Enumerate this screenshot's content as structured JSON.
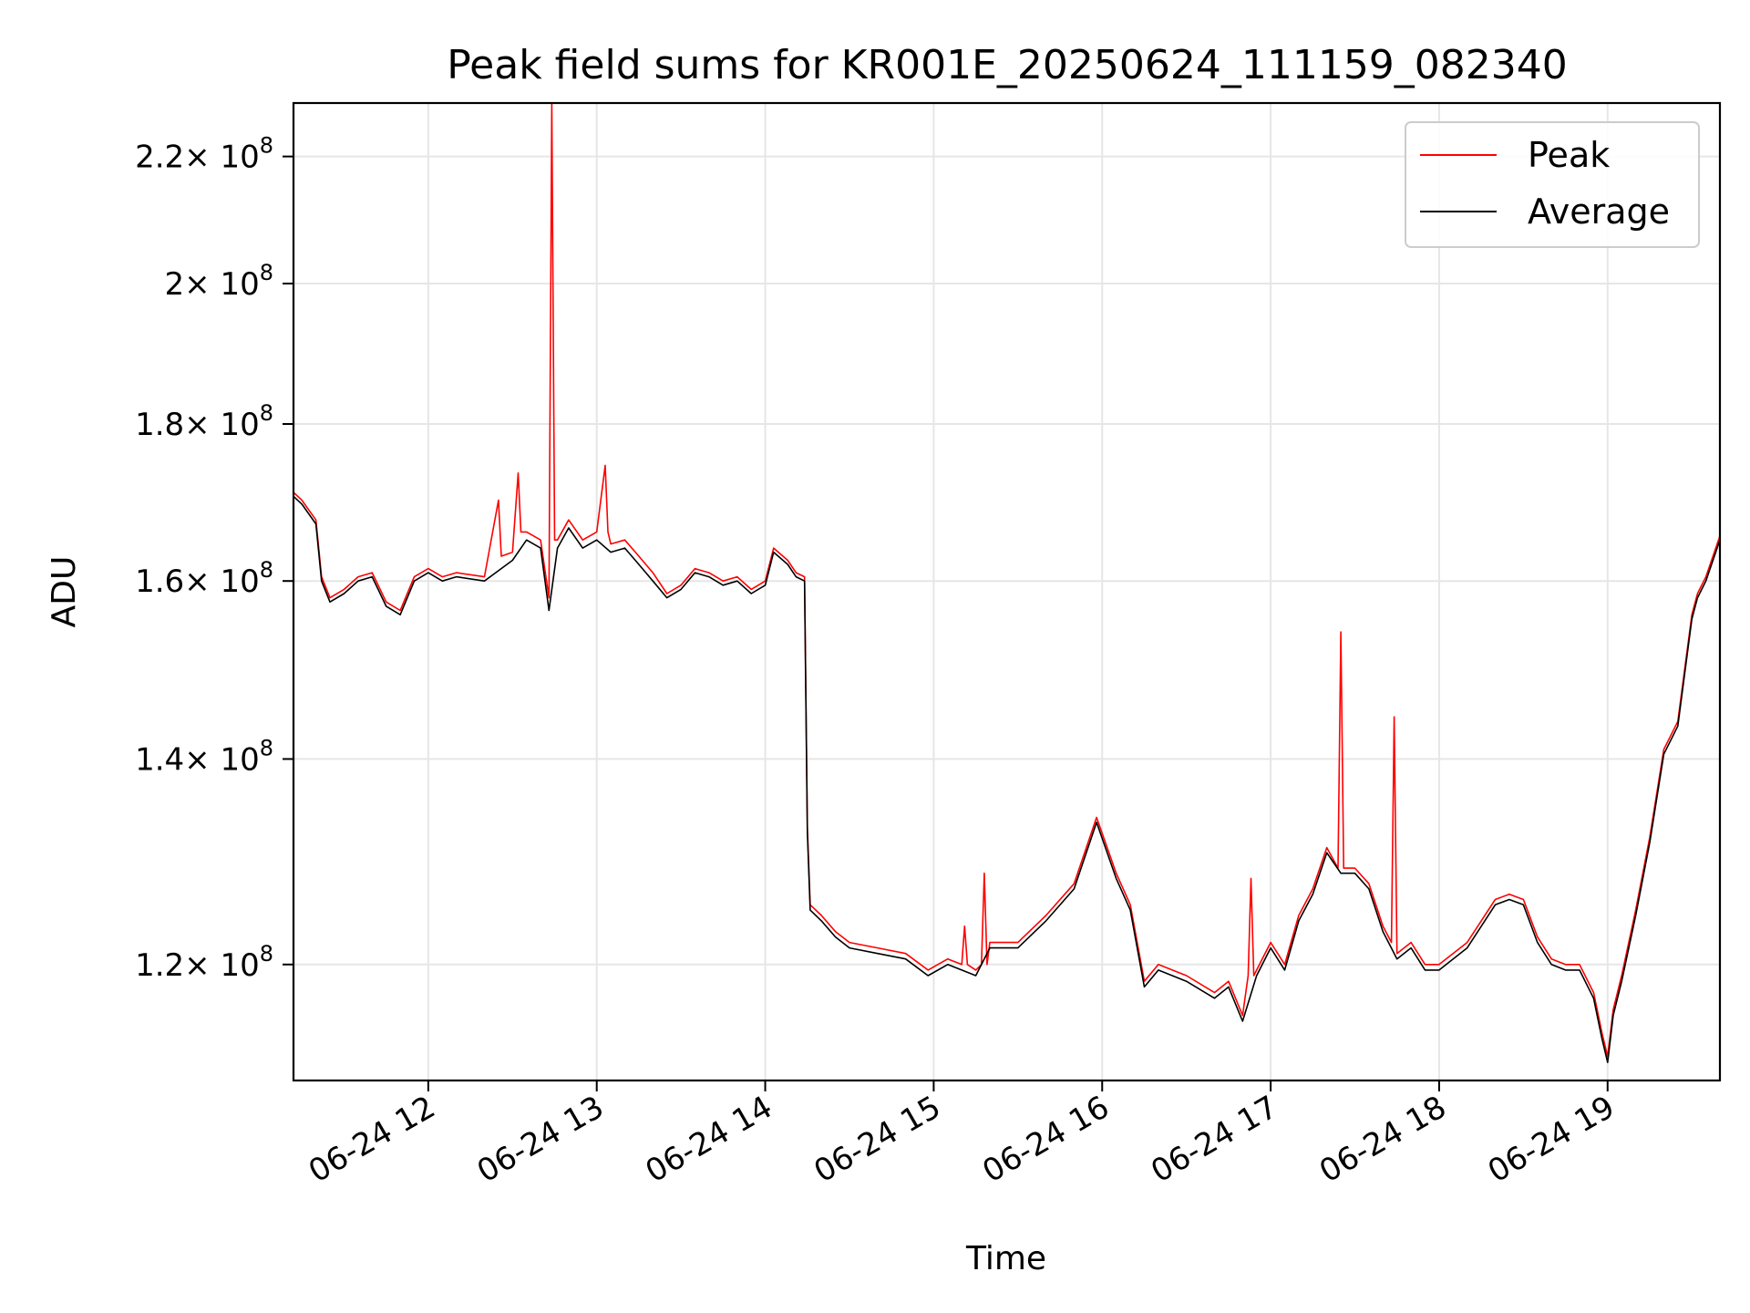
{
  "chart_data": {
    "type": "line",
    "title": "Peak field sums for KR001E_20250624_111159_082340",
    "xlabel": "Time",
    "ylabel": "ADU",
    "y_scale": "log",
    "grid": true,
    "legend_position": "top-right",
    "xlim": [
      "06-24 11:12",
      "06-24 19:40"
    ],
    "ylim": [
      110000000,
      229000000
    ],
    "x_ticks": [
      {
        "value": "06-24 12:00",
        "label": "06-24 12"
      },
      {
        "value": "06-24 13:00",
        "label": "06-24 13"
      },
      {
        "value": "06-24 14:00",
        "label": "06-24 14"
      },
      {
        "value": "06-24 15:00",
        "label": "06-24 15"
      },
      {
        "value": "06-24 16:00",
        "label": "06-24 16"
      },
      {
        "value": "06-24 17:00",
        "label": "06-24 17"
      },
      {
        "value": "06-24 18:00",
        "label": "06-24 18"
      },
      {
        "value": "06-24 19:00",
        "label": "06-24 19"
      }
    ],
    "y_ticks": [
      {
        "value": 120000000,
        "mantissa": "1.2",
        "exponent": "8"
      },
      {
        "value": 140000000,
        "mantissa": "1.4",
        "exponent": "8"
      },
      {
        "value": 160000000,
        "mantissa": "1.6",
        "exponent": "8"
      },
      {
        "value": 180000000,
        "mantissa": "1.8",
        "exponent": "8"
      },
      {
        "value": 200000000,
        "mantissa": "2",
        "exponent": "8"
      },
      {
        "value": 220000000,
        "mantissa": "2.2",
        "exponent": "8"
      }
    ],
    "times_label": "× 10",
    "series": [
      {
        "name": "Average",
        "color": "#000000",
        "x": [
          "06-24 11:12",
          "06-24 11:15",
          "06-24 11:20",
          "06-24 11:22",
          "06-24 11:25",
          "06-24 11:30",
          "06-24 11:35",
          "06-24 11:40",
          "06-24 11:45",
          "06-24 11:50",
          "06-24 11:55",
          "06-24 12:00",
          "06-24 12:05",
          "06-24 12:10",
          "06-24 12:20",
          "06-24 12:30",
          "06-24 12:35",
          "06-24 12:40",
          "06-24 12:43",
          "06-24 12:46",
          "06-24 12:50",
          "06-24 12:55",
          "06-24 13:00",
          "06-24 13:05",
          "06-24 13:10",
          "06-24 13:15",
          "06-24 13:20",
          "06-24 13:25",
          "06-24 13:30",
          "06-24 13:35",
          "06-24 13:40",
          "06-24 13:45",
          "06-24 13:50",
          "06-24 13:55",
          "06-24 14:00",
          "06-24 14:03",
          "06-24 14:08",
          "06-24 14:11",
          "06-24 14:14",
          "06-24 14:15",
          "06-24 14:16",
          "06-24 14:20",
          "06-24 14:25",
          "06-24 14:30",
          "06-24 14:40",
          "06-24 14:50",
          "06-24 14:58",
          "06-24 15:05",
          "06-24 15:15",
          "06-24 15:20",
          "06-24 15:30",
          "06-24 15:40",
          "06-24 15:50",
          "06-24 15:58",
          "06-24 16:05",
          "06-24 16:10",
          "06-24 16:15",
          "06-24 16:20",
          "06-24 16:30",
          "06-24 16:40",
          "06-24 16:45",
          "06-24 16:50",
          "06-24 16:55",
          "06-24 17:00",
          "06-24 17:05",
          "06-24 17:10",
          "06-24 17:15",
          "06-24 17:20",
          "06-24 17:25",
          "06-24 17:30",
          "06-24 17:35",
          "06-24 17:40",
          "06-24 17:45",
          "06-24 17:50",
          "06-24 17:55",
          "06-24 18:00",
          "06-24 18:10",
          "06-24 18:20",
          "06-24 18:25",
          "06-24 18:30",
          "06-24 18:35",
          "06-24 18:40",
          "06-24 18:45",
          "06-24 18:50",
          "06-24 18:55",
          "06-24 18:58",
          "06-24 19:00",
          "06-24 19:02",
          "06-24 19:05",
          "06-24 19:10",
          "06-24 19:15",
          "06-24 19:20",
          "06-24 19:25",
          "06-24 19:30",
          "06-24 19:32",
          "06-24 19:35",
          "06-24 19:40"
        ],
        "values": [
          170500000,
          169500000,
          167000000,
          160000000,
          157500000,
          158500000,
          160000000,
          160500000,
          157000000,
          156000000,
          160000000,
          161000000,
          160000000,
          160500000,
          160000000,
          162500000,
          165000000,
          164000000,
          156500000,
          164000000,
          166500000,
          164000000,
          165000000,
          163500000,
          164000000,
          162000000,
          160000000,
          158000000,
          159000000,
          161000000,
          160500000,
          159500000,
          160000000,
          158500000,
          159500000,
          163500000,
          162000000,
          160500000,
          160000000,
          132500000,
          125000000,
          124000000,
          122500000,
          121500000,
          121000000,
          120500000,
          119000000,
          120000000,
          119000000,
          121500000,
          121500000,
          124000000,
          127000000,
          133500000,
          128000000,
          125000000,
          118000000,
          119500000,
          118500000,
          117000000,
          118000000,
          115000000,
          119000000,
          121500000,
          119500000,
          124000000,
          126500000,
          130500000,
          128500000,
          128500000,
          127000000,
          123000000,
          120500000,
          121500000,
          119500000,
          119500000,
          121500000,
          125500000,
          126000000,
          125500000,
          122000000,
          120000000,
          119500000,
          119500000,
          117000000,
          113500000,
          111500000,
          115500000,
          118500000,
          124500000,
          131500000,
          140500000,
          143500000,
          155500000,
          158000000,
          160000000,
          165000000
        ]
      },
      {
        "name": "Peak",
        "color": "#ff0000",
        "x": [
          "06-24 11:12",
          "06-24 11:15",
          "06-24 11:20",
          "06-24 11:22",
          "06-24 11:25",
          "06-24 11:30",
          "06-24 11:35",
          "06-24 11:40",
          "06-24 11:45",
          "06-24 11:50",
          "06-24 11:55",
          "06-24 12:00",
          "06-24 12:05",
          "06-24 12:10",
          "06-24 12:20",
          "06-24 12:25",
          "06-24 12:26",
          "06-24 12:30",
          "06-24 12:32",
          "06-24 12:33",
          "06-24 12:35",
          "06-24 12:40",
          "06-24 12:43",
          "06-24 12:44",
          "06-24 12:45",
          "06-24 12:46",
          "06-24 12:50",
          "06-24 12:55",
          "06-24 13:00",
          "06-24 13:03",
          "06-24 13:04",
          "06-24 13:05",
          "06-24 13:10",
          "06-24 13:15",
          "06-24 13:20",
          "06-24 13:25",
          "06-24 13:30",
          "06-24 13:35",
          "06-24 13:40",
          "06-24 13:45",
          "06-24 13:50",
          "06-24 13:55",
          "06-24 14:00",
          "06-24 14:03",
          "06-24 14:08",
          "06-24 14:11",
          "06-24 14:14",
          "06-24 14:15",
          "06-24 14:16",
          "06-24 14:20",
          "06-24 14:25",
          "06-24 14:30",
          "06-24 14:40",
          "06-24 14:50",
          "06-24 14:58",
          "06-24 15:05",
          "06-24 15:10",
          "06-24 15:11",
          "06-24 15:12",
          "06-24 15:15",
          "06-24 15:17",
          "06-24 15:18",
          "06-24 15:19",
          "06-24 15:20",
          "06-24 15:30",
          "06-24 15:40",
          "06-24 15:50",
          "06-24 15:58",
          "06-24 16:05",
          "06-24 16:10",
          "06-24 16:15",
          "06-24 16:20",
          "06-24 16:30",
          "06-24 16:40",
          "06-24 16:45",
          "06-24 16:50",
          "06-24 16:52",
          "06-24 16:53",
          "06-24 16:54",
          "06-24 16:55",
          "06-24 17:00",
          "06-24 17:05",
          "06-24 17:10",
          "06-24 17:15",
          "06-24 17:20",
          "06-24 17:24",
          "06-24 17:25",
          "06-24 17:26",
          "06-24 17:30",
          "06-24 17:35",
          "06-24 17:40",
          "06-24 17:43",
          "06-24 17:44",
          "06-24 17:45",
          "06-24 17:50",
          "06-24 17:55",
          "06-24 18:00",
          "06-24 18:10",
          "06-24 18:20",
          "06-24 18:25",
          "06-24 18:30",
          "06-24 18:35",
          "06-24 18:40",
          "06-24 18:45",
          "06-24 18:50",
          "06-24 18:55",
          "06-24 18:58",
          "06-24 19:00",
          "06-24 19:02",
          "06-24 19:05",
          "06-24 19:10",
          "06-24 19:15",
          "06-24 19:20",
          "06-24 19:25",
          "06-24 19:30",
          "06-24 19:32",
          "06-24 19:35",
          "06-24 19:40"
        ],
        "values": [
          171000000,
          170000000,
          167500000,
          160500000,
          158000000,
          159000000,
          160500000,
          161000000,
          157500000,
          156500000,
          160500000,
          161500000,
          160500000,
          161000000,
          160500000,
          170000000,
          163000000,
          163500000,
          173500000,
          166000000,
          166000000,
          165000000,
          158000000,
          229000000,
          165000000,
          165000000,
          167500000,
          165000000,
          166000000,
          174500000,
          166000000,
          164500000,
          165000000,
          163000000,
          161000000,
          158500000,
          159500000,
          161500000,
          161000000,
          160000000,
          160500000,
          159000000,
          160000000,
          164000000,
          162500000,
          161000000,
          160500000,
          133000000,
          125500000,
          124500000,
          123000000,
          122000000,
          121500000,
          121000000,
          119500000,
          120500000,
          120000000,
          123500000,
          120000000,
          119500000,
          120000000,
          128500000,
          120000000,
          122000000,
          122000000,
          124500000,
          127500000,
          134000000,
          128500000,
          125500000,
          118500000,
          120000000,
          119000000,
          117500000,
          118500000,
          115500000,
          119000000,
          128000000,
          119000000,
          119500000,
          122000000,
          120000000,
          124500000,
          127000000,
          131000000,
          129000000,
          154000000,
          129000000,
          129000000,
          127500000,
          123500000,
          122000000,
          144500000,
          121000000,
          122000000,
          120000000,
          120000000,
          122000000,
          126000000,
          126500000,
          126000000,
          122500000,
          120500000,
          120000000,
          120000000,
          117500000,
          114000000,
          112000000,
          116000000,
          119000000,
          125000000,
          132000000,
          141000000,
          144000000,
          156000000,
          158500000,
          160500000,
          165500000
        ]
      }
    ],
    "legend": [
      {
        "name": "Peak",
        "color": "#ff0000"
      },
      {
        "name": "Average",
        "color": "#000000"
      }
    ]
  }
}
